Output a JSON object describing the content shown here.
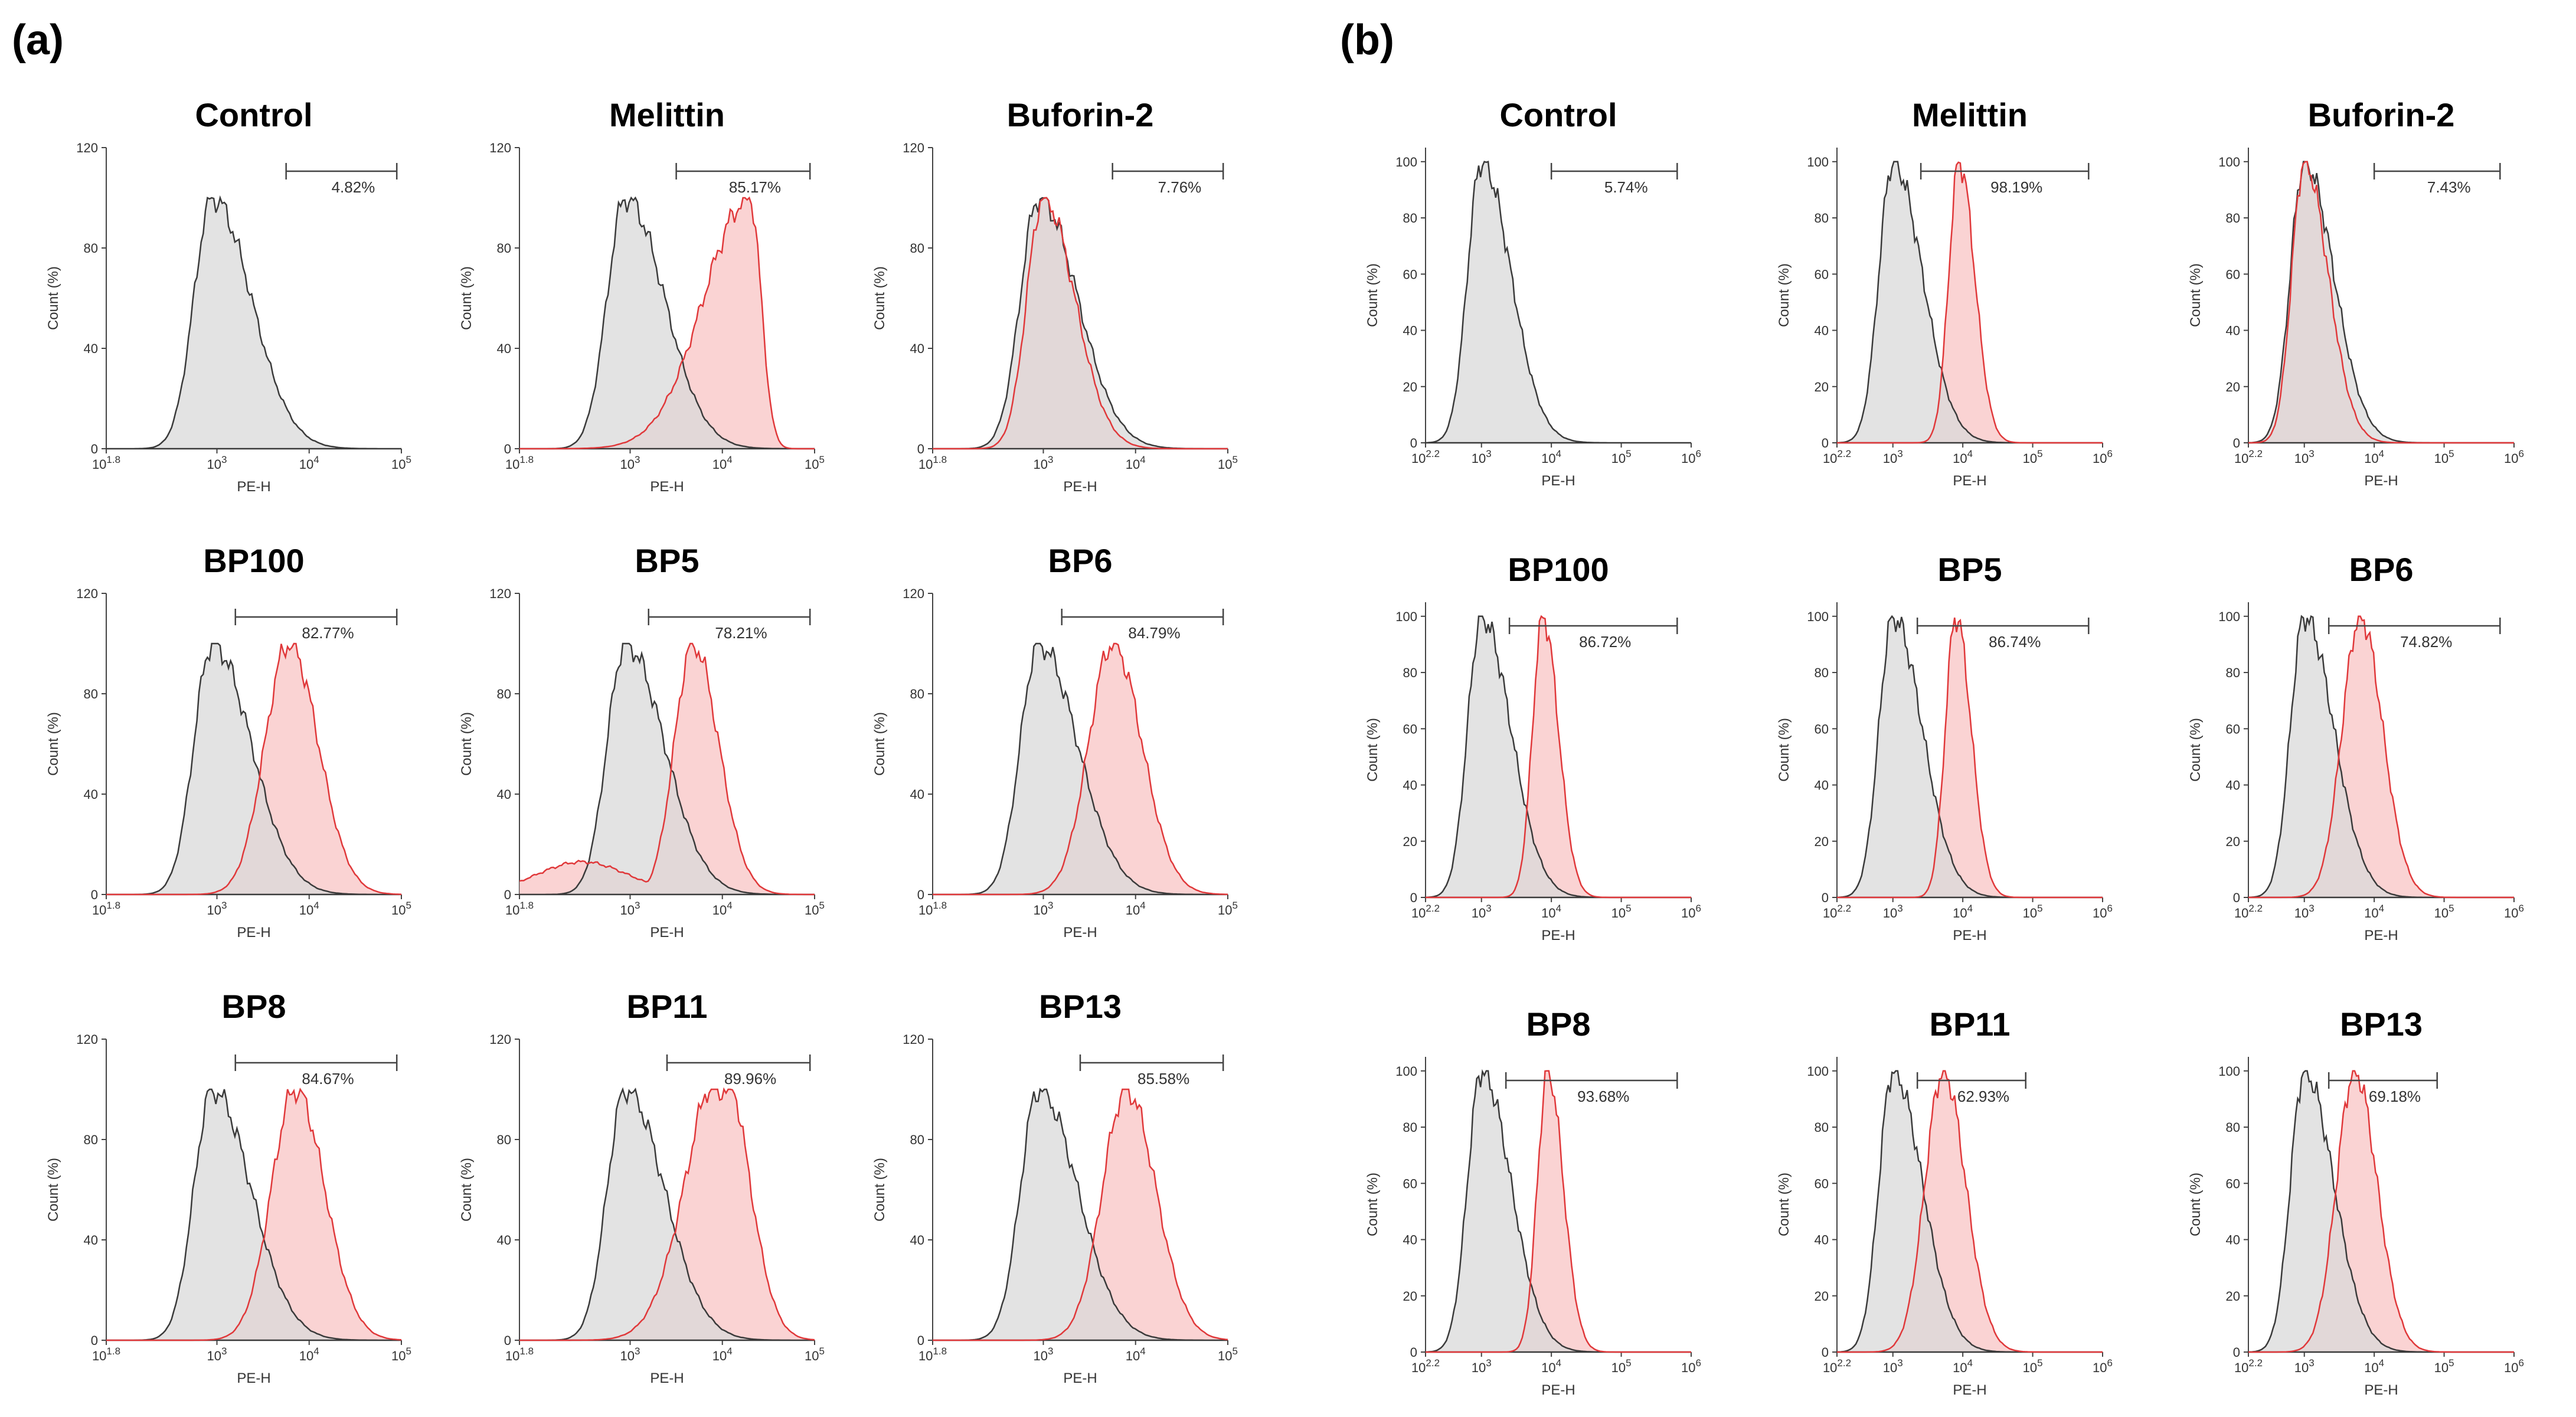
{
  "figure": {
    "panel_a": "(a)",
    "panel_b": "(b)"
  },
  "colors": {
    "control_line": "#3a3a3a",
    "control_fill": "#d9d9d9",
    "treat_line": "#e0383a",
    "treat_fill": "#f9c8c8",
    "overlap_fill": "#c9a9a9"
  },
  "chart_data": [
    {
      "panel": "(a)",
      "type": "histogram-grid",
      "xlabel": "PE-H",
      "ylabel": "Count (%)",
      "xlim_log10": [
        1.8,
        5
      ],
      "ylim": [
        0,
        120
      ],
      "x_ticks": [
        {
          "base": "10",
          "exp": "1.8"
        },
        {
          "base": "10",
          "exp": "3"
        },
        {
          "base": "10",
          "exp": "4"
        },
        {
          "base": "10",
          "exp": "5"
        }
      ],
      "y_ticks": [
        "0",
        "40",
        "80",
        "120"
      ],
      "control_peak_log10": 2.95,
      "plots": [
        {
          "title": "Control",
          "percent": "4.82%",
          "gate_log10": [
            3.75,
            4.95
          ],
          "treated": null
        },
        {
          "title": "Melittin",
          "percent": "85.17%",
          "gate_log10": [
            3.5,
            4.95
          ],
          "treated": {
            "peak_log10": 4.3,
            "kind": "skew"
          }
        },
        {
          "title": "Buforin-2",
          "percent": "7.76%",
          "gate_log10": [
            3.75,
            4.95
          ],
          "treated": {
            "peak_log10": 3.0,
            "kind": "overlap"
          }
        },
        {
          "title": "BP100",
          "percent": "82.77%",
          "gate_log10": [
            3.2,
            4.95
          ],
          "treated": {
            "peak_log10": 3.78
          }
        },
        {
          "title": "BP5",
          "percent": "78.21%",
          "gate_log10": [
            3.2,
            4.95
          ],
          "treated": {
            "peak_log10": 3.68,
            "kind": "shoulder"
          }
        },
        {
          "title": "BP6",
          "percent": "84.79%",
          "gate_log10": [
            3.2,
            4.95
          ],
          "treated": {
            "peak_log10": 3.75
          }
        },
        {
          "title": "BP8",
          "percent": "84.67%",
          "gate_log10": [
            3.2,
            4.95
          ],
          "treated": {
            "peak_log10": 3.85
          }
        },
        {
          "title": "BP11",
          "percent": "89.96%",
          "gate_log10": [
            3.4,
            4.95
          ],
          "treated": {
            "peak_log10": 4.0,
            "kind": "flat"
          }
        },
        {
          "title": "BP13",
          "percent": "85.58%",
          "gate_log10": [
            3.4,
            4.95
          ],
          "treated": {
            "peak_log10": 3.9
          }
        }
      ]
    },
    {
      "panel": "(b)",
      "type": "histogram-grid",
      "xlabel": "PE-H",
      "ylabel": "Count (%)",
      "xlim_log10": [
        2.2,
        6
      ],
      "ylim": [
        0,
        105
      ],
      "x_ticks": [
        {
          "base": "10",
          "exp": "2.2"
        },
        {
          "base": "10",
          "exp": "3"
        },
        {
          "base": "10",
          "exp": "4"
        },
        {
          "base": "10",
          "exp": "5"
        },
        {
          "base": "10",
          "exp": "6"
        }
      ],
      "y_ticks": [
        "0",
        "20",
        "40",
        "60",
        "80",
        "100"
      ],
      "control_peak_log10": 3.0,
      "plots": [
        {
          "title": "Control",
          "percent": "5.74%",
          "gate_log10": [
            4.0,
            5.8
          ],
          "treated": null
        },
        {
          "title": "Melittin",
          "percent": "98.19%",
          "gate_log10": [
            3.4,
            5.8
          ],
          "treated": {
            "peak_log10": 3.95,
            "kind": "narrow"
          }
        },
        {
          "title": "Buforin-2",
          "percent": "7.43%",
          "gate_log10": [
            4.0,
            5.8
          ],
          "treated": {
            "peak_log10": 3.0,
            "kind": "overlap"
          }
        },
        {
          "title": "BP100",
          "percent": "86.72%",
          "gate_log10": [
            3.4,
            5.8
          ],
          "treated": {
            "peak_log10": 3.88,
            "kind": "narrow"
          }
        },
        {
          "title": "BP5",
          "percent": "86.74%",
          "gate_log10": [
            3.35,
            5.8
          ],
          "treated": {
            "peak_log10": 3.9,
            "kind": "narrow"
          }
        },
        {
          "title": "BP6",
          "percent": "74.82%",
          "gate_log10": [
            3.35,
            5.8
          ],
          "treated": {
            "peak_log10": 3.8
          }
        },
        {
          "title": "BP8",
          "percent": "93.68%",
          "gate_log10": [
            3.35,
            5.8
          ],
          "treated": {
            "peak_log10": 3.95,
            "kind": "narrow"
          }
        },
        {
          "title": "BP11",
          "percent": "62.93%",
          "gate_log10": [
            3.35,
            4.9
          ],
          "treated": {
            "peak_log10": 3.72
          }
        },
        {
          "title": "BP13",
          "percent": "69.18%",
          "gate_log10": [
            3.35,
            4.9
          ],
          "treated": {
            "peak_log10": 3.72
          }
        }
      ]
    }
  ]
}
